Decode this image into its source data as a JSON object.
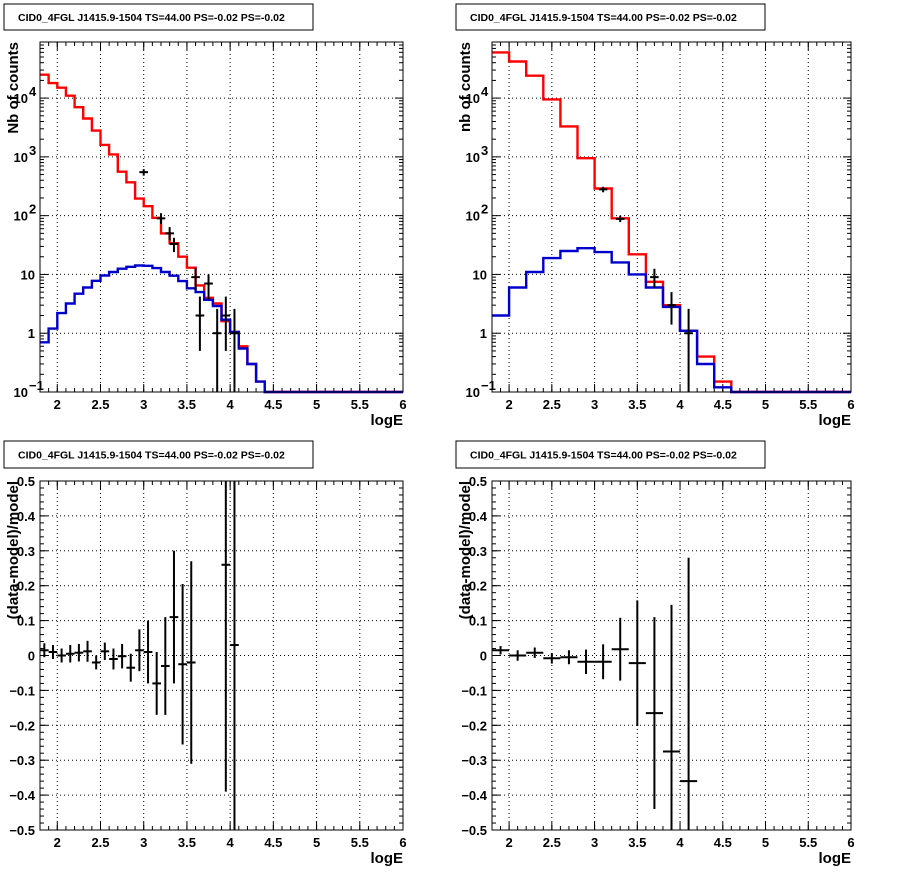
{
  "chart_data": [
    {
      "type": "step-histogram",
      "title": "CID0_4FGL J1415.9-1504 TS=44.00 PS=-0.02 PS=-0.02",
      "xlabel": "logE",
      "ylabel": "Nb of counts",
      "xlim": [
        1.8,
        6.0
      ],
      "ylim": [
        0.1,
        90000
      ],
      "yscale": "log",
      "grid": true,
      "xticks": [
        "2",
        "2.5",
        "3",
        "3.5",
        "4",
        "4.5",
        "5",
        "5.5",
        "6"
      ],
      "yticks": [
        {
          "v": 0.1,
          "label": "10",
          "exp": "−1"
        },
        {
          "v": 1,
          "label": "1",
          "exp": ""
        },
        {
          "v": 10,
          "label": "10",
          "exp": ""
        },
        {
          "v": 100,
          "label": "10",
          "exp": "2"
        },
        {
          "v": 1000,
          "label": "10",
          "exp": "3"
        },
        {
          "v": 10000,
          "label": "10",
          "exp": "4"
        }
      ],
      "bin_edges": [
        1.8,
        1.9,
        2.0,
        2.1,
        2.2,
        2.3,
        2.4,
        2.5,
        2.6,
        2.7,
        2.8,
        2.9,
        3.0,
        3.1,
        3.2,
        3.3,
        3.4,
        3.5,
        3.6,
        3.7,
        3.8,
        3.9,
        4.0,
        4.1,
        4.2,
        4.3,
        4.4,
        4.5,
        4.6,
        4.7,
        4.8,
        4.9,
        5.0,
        5.1,
        5.2,
        5.3,
        5.4,
        5.5,
        5.6,
        5.7,
        5.8,
        5.9,
        6.0
      ],
      "series": [
        {
          "color": "#ff0000",
          "values": [
            25000,
            18000,
            15000,
            11000,
            7000,
            4500,
            2800,
            1600,
            1100,
            560,
            370,
            195,
            145,
            92,
            50,
            34,
            20,
            13,
            6.5,
            4,
            3.2,
            1.6,
            1.05,
            0.6,
            0.3,
            0.15,
            0.1,
            0.1,
            0.1,
            0.1,
            0.1,
            0.1,
            0.1,
            0.1,
            0.1,
            0.1,
            0.1,
            0.1,
            0.1,
            0.1,
            0.1,
            0.1
          ]
        },
        {
          "color": "#0000cc",
          "values": [
            0.7,
            1.2,
            2.2,
            3.2,
            4.7,
            6,
            7.8,
            9.6,
            11,
            12.5,
            13.5,
            14.2,
            14,
            12.8,
            11,
            9.5,
            7.7,
            5.8,
            5,
            3.7,
            2.9,
            1.7,
            1.05,
            0.55,
            0.3,
            0.15,
            0.1,
            0.1,
            0.1,
            0.1,
            0.1,
            0.1,
            0.1,
            0.1,
            0.1,
            0.1,
            0.1,
            0.1,
            0.1,
            0.1,
            0.1,
            0.1
          ]
        }
      ],
      "points": [
        {
          "x": 3.0,
          "y": 550,
          "lo": 480,
          "hi": 620
        },
        {
          "x": 3.2,
          "y": 90,
          "lo": 72,
          "hi": 110
        },
        {
          "x": 3.3,
          "y": 50,
          "lo": 38,
          "hi": 64
        },
        {
          "x": 3.35,
          "y": 33,
          "lo": 24,
          "hi": 42
        },
        {
          "x": 3.6,
          "y": 9,
          "lo": 5.5,
          "hi": 13
        },
        {
          "x": 3.65,
          "y": 2,
          "lo": 0.5,
          "hi": 4.2
        },
        {
          "x": 3.75,
          "y": 7,
          "lo": 3.8,
          "hi": 10
        },
        {
          "x": 3.85,
          "y": 1,
          "lo": 0.1,
          "hi": 2.6
        },
        {
          "x": 3.95,
          "y": 2,
          "lo": 0.5,
          "hi": 4.2
        },
        {
          "x": 4.05,
          "y": 1,
          "lo": 0.1,
          "hi": 2.6
        }
      ]
    },
    {
      "type": "step-histogram",
      "title": "CID0_4FGL J1415.9-1504 TS=44.00 PS=-0.02 PS=-0.02",
      "xlabel": "logE",
      "ylabel": "nb of counts",
      "xlim": [
        1.8,
        6.0
      ],
      "ylim": [
        0.1,
        90000
      ],
      "yscale": "log",
      "grid": true,
      "xticks": [
        "2",
        "2.5",
        "3",
        "3.5",
        "4",
        "4.5",
        "5",
        "5.5",
        "6"
      ],
      "yticks": [
        {
          "v": 0.1,
          "label": "10",
          "exp": "−1"
        },
        {
          "v": 1,
          "label": "1",
          "exp": ""
        },
        {
          "v": 10,
          "label": "10",
          "exp": ""
        },
        {
          "v": 100,
          "label": "10",
          "exp": "2"
        },
        {
          "v": 1000,
          "label": "10",
          "exp": "3"
        },
        {
          "v": 10000,
          "label": "10",
          "exp": "4"
        }
      ],
      "bin_edges": [
        1.8,
        2.0,
        2.2,
        2.4,
        2.6,
        2.8,
        3.0,
        3.2,
        3.4,
        3.6,
        3.8,
        4.0,
        4.2,
        4.4,
        4.6,
        4.8,
        5.0,
        5.2,
        5.4,
        5.6,
        5.8,
        6.0
      ],
      "series": [
        {
          "color": "#ff0000",
          "values": [
            60000,
            42000,
            24000,
            9500,
            3300,
            950,
            290,
            90,
            22,
            7.5,
            3,
            1.1,
            0.4,
            0.15,
            0.1,
            0.1,
            0.1,
            0.1,
            0.1,
            0.1,
            0.1
          ]
        },
        {
          "color": "#0000cc",
          "values": [
            2,
            6,
            11,
            19,
            25,
            28,
            24,
            16,
            10,
            6,
            2.8,
            1.1,
            0.3,
            0.12,
            0.1,
            0.1,
            0.1,
            0.1,
            0.1,
            0.1,
            0.1
          ]
        }
      ],
      "points": [
        {
          "x": 3.1,
          "y": 280,
          "lo": 250,
          "hi": 310
        },
        {
          "x": 3.3,
          "y": 88,
          "lo": 78,
          "hi": 100
        },
        {
          "x": 3.7,
          "y": 9,
          "lo": 6,
          "hi": 12.5
        },
        {
          "x": 3.9,
          "y": 3,
          "lo": 1.4,
          "hi": 5
        },
        {
          "x": 4.1,
          "y": 1,
          "lo": 0.1,
          "hi": 2.6
        }
      ]
    },
    {
      "type": "scatter",
      "title": "CID0_4FGL J1415.9-1504 TS=44.00 PS=-0.02 PS=-0.02",
      "xlabel": "logE",
      "ylabel": "(data-model)/model",
      "xlim": [
        1.8,
        6.0
      ],
      "ylim": [
        -0.5,
        0.5
      ],
      "grid": true,
      "xticks": [
        "2",
        "2.5",
        "3",
        "3.5",
        "4",
        "4.5",
        "5",
        "5.5",
        "6"
      ],
      "yticks": [
        "−0.5",
        "−0.4",
        "−0.3",
        "−0.2",
        "−0.1",
        "0",
        "0.1",
        "0.2",
        "0.3",
        "0.4",
        "0.5"
      ],
      "xerr": 0.05,
      "points": [
        {
          "x": 1.85,
          "y": 0.015,
          "e": 0.02
        },
        {
          "x": 1.95,
          "y": 0.01,
          "e": 0.02
        },
        {
          "x": 2.05,
          "y": 0.0,
          "e": 0.02
        },
        {
          "x": 2.15,
          "y": 0.005,
          "e": 0.025
        },
        {
          "x": 2.25,
          "y": 0.008,
          "e": 0.025
        },
        {
          "x": 2.35,
          "y": 0.012,
          "e": 0.03
        },
        {
          "x": 2.45,
          "y": -0.02,
          "e": 0.02
        },
        {
          "x": 2.55,
          "y": 0.012,
          "e": 0.025
        },
        {
          "x": 2.65,
          "y": -0.01,
          "e": 0.03
        },
        {
          "x": 2.75,
          "y": -0.002,
          "e": 0.035
        },
        {
          "x": 2.85,
          "y": -0.035,
          "e": 0.04
        },
        {
          "x": 2.95,
          "y": 0.015,
          "e": 0.06
        },
        {
          "x": 3.05,
          "y": 0.01,
          "e": 0.09
        },
        {
          "x": 3.15,
          "y": -0.08,
          "e": 0.09
        },
        {
          "x": 3.25,
          "y": -0.03,
          "e": 0.14
        },
        {
          "x": 3.35,
          "y": 0.11,
          "e": 0.19
        },
        {
          "x": 3.45,
          "y": -0.025,
          "e": 0.23
        },
        {
          "x": 3.55,
          "y": -0.02,
          "e": 0.29
        },
        {
          "x": 3.95,
          "y": 0.26,
          "e": 0.65
        },
        {
          "x": 4.05,
          "y": 0.03,
          "e": 0.65
        }
      ]
    },
    {
      "type": "scatter",
      "title": "CID0_4FGL J1415.9-1504 TS=44.00 PS=-0.02 PS=-0.02",
      "xlabel": "logE",
      "ylabel": "(data-model)/model",
      "xlim": [
        1.8,
        6.0
      ],
      "ylim": [
        -0.5,
        0.5
      ],
      "grid": true,
      "xticks": [
        "2",
        "2.5",
        "3",
        "3.5",
        "4",
        "4.5",
        "5",
        "5.5",
        "6"
      ],
      "yticks": [
        "−0.5",
        "−0.4",
        "−0.3",
        "−0.2",
        "−0.1",
        "0",
        "0.1",
        "0.2",
        "0.3",
        "0.4",
        "0.5"
      ],
      "xerr": 0.1,
      "points": [
        {
          "x": 1.9,
          "y": 0.015,
          "e": 0.012
        },
        {
          "x": 2.1,
          "y": 0.0,
          "e": 0.015
        },
        {
          "x": 2.3,
          "y": 0.008,
          "e": 0.015
        },
        {
          "x": 2.5,
          "y": -0.008,
          "e": 0.015
        },
        {
          "x": 2.7,
          "y": -0.005,
          "e": 0.02
        },
        {
          "x": 2.9,
          "y": -0.018,
          "e": 0.035
        },
        {
          "x": 3.1,
          "y": -0.018,
          "e": 0.05
        },
        {
          "x": 3.3,
          "y": 0.018,
          "e": 0.09
        },
        {
          "x": 3.5,
          "y": -0.022,
          "e": 0.18
        },
        {
          "x": 3.7,
          "y": -0.165,
          "e": 0.275
        },
        {
          "x": 3.9,
          "y": -0.275,
          "e": 0.42
        },
        {
          "x": 4.1,
          "y": -0.36,
          "e": 0.64
        }
      ]
    }
  ]
}
